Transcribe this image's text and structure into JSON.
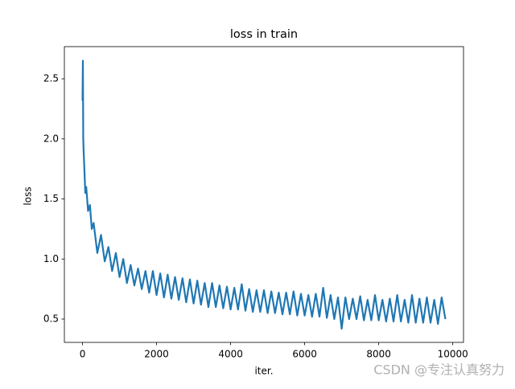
{
  "chart_data": {
    "type": "line",
    "title": "loss in train",
    "xlabel": "iter.",
    "ylabel": "loss",
    "watermark": "CSDN @专注认真努力",
    "color": "#1f77b4",
    "x": [
      0,
      10,
      20,
      30,
      50,
      75,
      100,
      150,
      200,
      250,
      300,
      400,
      500,
      600,
      700,
      800,
      900,
      1000,
      1100,
      1200,
      1300,
      1400,
      1500,
      1600,
      1700,
      1800,
      1900,
      2000,
      2100,
      2200,
      2300,
      2400,
      2500,
      2600,
      2700,
      2800,
      2900,
      3000,
      3100,
      3200,
      3300,
      3400,
      3500,
      3600,
      3700,
      3800,
      3900,
      4000,
      4100,
      4200,
      4300,
      4400,
      4500,
      4600,
      4700,
      4800,
      4900,
      5000,
      5100,
      5200,
      5300,
      5400,
      5500,
      5600,
      5700,
      5800,
      5900,
      6000,
      6100,
      6200,
      6300,
      6400,
      6500,
      6600,
      6700,
      6800,
      6900,
      7000,
      7100,
      7200,
      7300,
      7400,
      7500,
      7600,
      7700,
      7800,
      7900,
      8000,
      8100,
      8200,
      8300,
      8400,
      8500,
      8600,
      8700,
      8800,
      8900,
      9000,
      9100,
      9200,
      9300,
      9400,
      9500,
      9600,
      9700,
      9800
    ],
    "values": [
      2.32,
      2.65,
      2.0,
      1.9,
      1.75,
      1.55,
      1.6,
      1.4,
      1.45,
      1.25,
      1.3,
      1.05,
      1.2,
      0.98,
      1.1,
      0.9,
      1.05,
      0.85,
      1.0,
      0.8,
      0.95,
      0.78,
      0.92,
      0.75,
      0.9,
      0.72,
      0.9,
      0.7,
      0.88,
      0.68,
      0.87,
      0.67,
      0.85,
      0.66,
      0.84,
      0.64,
      0.83,
      0.63,
      0.82,
      0.62,
      0.8,
      0.6,
      0.8,
      0.6,
      0.78,
      0.59,
      0.77,
      0.58,
      0.76,
      0.58,
      0.79,
      0.57,
      0.75,
      0.56,
      0.74,
      0.56,
      0.74,
      0.55,
      0.73,
      0.55,
      0.72,
      0.54,
      0.72,
      0.54,
      0.73,
      0.53,
      0.71,
      0.53,
      0.7,
      0.52,
      0.71,
      0.52,
      0.76,
      0.51,
      0.7,
      0.5,
      0.68,
      0.42,
      0.68,
      0.5,
      0.67,
      0.5,
      0.69,
      0.49,
      0.66,
      0.49,
      0.7,
      0.49,
      0.66,
      0.48,
      0.67,
      0.48,
      0.7,
      0.48,
      0.66,
      0.47,
      0.7,
      0.47,
      0.67,
      0.47,
      0.68,
      0.47,
      0.66,
      0.46,
      0.68,
      0.5
    ],
    "xlim": [
      -490,
      10290
    ],
    "ylim": [
      0.306,
      2.768
    ],
    "xticks": [
      0,
      2000,
      4000,
      6000,
      8000,
      10000
    ],
    "yticks": [
      0.5,
      {
        "value": 1,
        "label": "1.0"
      },
      1.5,
      {
        "value": 2,
        "label": "2.0"
      },
      2.5
    ],
    "grid": false
  }
}
